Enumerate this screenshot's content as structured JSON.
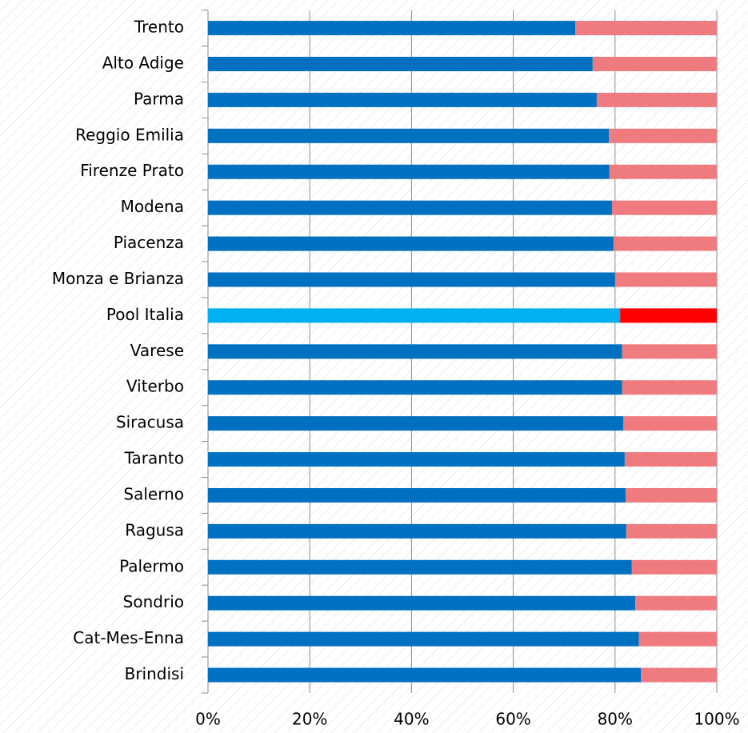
{
  "chart_data": {
    "type": "stacked_barh",
    "categories": [
      "Trento",
      "Alto Adige",
      "Parma",
      "Reggio Emilia",
      "Firenze Prato",
      "Modena",
      "Piacenza",
      "Monza e Brianza",
      "Pool Italia",
      "Varese",
      "Viterbo",
      "Siracusa",
      "Taranto",
      "Salerno",
      "Ragusa",
      "Palermo",
      "Sondrio",
      "Cat-Mes-Enna",
      "Brindisi"
    ],
    "series": [
      {
        "color": "#0070c0",
        "colors": [
          "#0070c0",
          "#0070c0",
          "#0070c0",
          "#0070c0",
          "#0070c0",
          "#0070c0",
          "#0070c0",
          "#0070c0",
          "#00b0f0",
          "#0070c0",
          "#0070c0",
          "#0070c0",
          "#0070c0",
          "#0070c0",
          "#0070c0",
          "#0070c0",
          "#0070c0",
          "#0070c0",
          "#0070c0"
        ],
        "values": [
          72.2,
          75.6,
          76.4,
          78.8,
          78.9,
          79.4,
          79.7,
          80.0,
          81.0,
          81.4,
          81.4,
          81.6,
          81.9,
          82.1,
          82.2,
          83.3,
          84.0,
          84.7,
          85.1
        ]
      },
      {
        "color": "#f07b7f",
        "colors": [
          "#f07b7f",
          "#f07b7f",
          "#f07b7f",
          "#f07b7f",
          "#f07b7f",
          "#f07b7f",
          "#f07b7f",
          "#f07b7f",
          "#ff0000",
          "#f07b7f",
          "#f07b7f",
          "#f07b7f",
          "#f07b7f",
          "#f07b7f",
          "#f07b7f",
          "#f07b7f",
          "#f07b7f",
          "#f07b7f",
          "#f07b7f"
        ],
        "values": [
          27.8,
          24.4,
          23.6,
          21.2,
          21.1,
          20.6,
          20.3,
          20.0,
          19.0,
          18.6,
          18.6,
          18.4,
          18.1,
          17.9,
          17.8,
          16.7,
          16.0,
          15.3,
          14.9
        ]
      }
    ],
    "xlim": [
      0,
      100
    ],
    "xticks": [
      {
        "value": 0,
        "label": "0%"
      },
      {
        "value": 20,
        "label": "20%"
      },
      {
        "value": 40,
        "label": "40%"
      },
      {
        "value": 60,
        "label": "60%"
      },
      {
        "value": 80,
        "label": "80%"
      },
      {
        "value": 100,
        "label": "100%"
      }
    ],
    "grid": true
  }
}
